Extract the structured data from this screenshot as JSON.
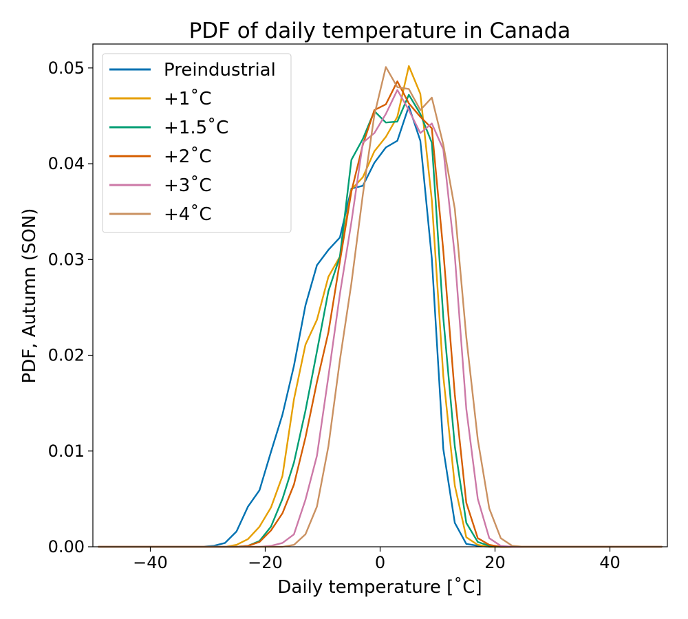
{
  "chart_data": {
    "type": "line",
    "title": "PDF of daily temperature in Canada",
    "xlabel": "Daily temperature [˚C]",
    "ylabel": "PDF, Autumn (SON)",
    "xlim": [
      -50,
      50
    ],
    "ylim": [
      0,
      0.0525
    ],
    "xticks": [
      -40,
      -20,
      0,
      20,
      40
    ],
    "xtick_labels": [
      "−40",
      "−20",
      "0",
      "20",
      "40"
    ],
    "yticks": [
      0,
      0.01,
      0.02,
      0.03,
      0.04,
      0.05
    ],
    "ytick_labels": [
      "0.00",
      "0.01",
      "0.02",
      "0.03",
      "0.04",
      "0.05"
    ],
    "grid": false,
    "legend_position": "top-left",
    "x": [
      -49,
      -47,
      -45,
      -43,
      -41,
      -39,
      -37,
      -35,
      -33,
      -31,
      -29,
      -27,
      -25,
      -23,
      -21,
      -19,
      -17,
      -15,
      -13,
      -11,
      -9,
      -7,
      -5,
      -3,
      -1,
      1,
      3,
      5,
      7,
      9,
      11,
      13,
      15,
      17,
      19,
      21,
      23,
      25,
      27,
      29,
      31,
      33,
      35,
      37,
      39,
      41,
      43,
      45,
      47,
      49
    ],
    "series": [
      {
        "name": "Preindustrial",
        "color": "#0072b2",
        "values": [
          0,
          0,
          0,
          0,
          0,
          0,
          0,
          0,
          0,
          0,
          0.0001,
          0.0004,
          0.0016,
          0.0042,
          0.0059,
          0.0099,
          0.0138,
          0.0189,
          0.0252,
          0.0294,
          0.031,
          0.0323,
          0.0374,
          0.0377,
          0.0401,
          0.0417,
          0.0424,
          0.046,
          0.0424,
          0.0301,
          0.0102,
          0.0025,
          0.0003,
          0.0001,
          0,
          0,
          0,
          0,
          0,
          0,
          0,
          0,
          0,
          0,
          0,
          0,
          0,
          0,
          0,
          0
        ]
      },
      {
        "name": "+1˚C",
        "color": "#e69f00",
        "values": [
          0,
          0,
          0,
          0,
          0,
          0,
          0,
          0,
          0,
          0,
          0,
          0,
          0.0002,
          0.0008,
          0.0021,
          0.0041,
          0.0074,
          0.0154,
          0.0211,
          0.0237,
          0.0282,
          0.0303,
          0.0373,
          0.0386,
          0.0413,
          0.0428,
          0.0449,
          0.0502,
          0.0473,
          0.0362,
          0.0178,
          0.0064,
          0.001,
          0.0002,
          0,
          0,
          0,
          0,
          0,
          0,
          0,
          0,
          0,
          0,
          0,
          0,
          0,
          0,
          0,
          0
        ]
      },
      {
        "name": "+1.5˚C",
        "color": "#009e73",
        "values": [
          0,
          0,
          0,
          0,
          0,
          0,
          0,
          0,
          0,
          0,
          0,
          0,
          0,
          0.0001,
          0.0006,
          0.0021,
          0.005,
          0.0088,
          0.0142,
          0.0204,
          0.0267,
          0.0303,
          0.0404,
          0.0426,
          0.0455,
          0.0443,
          0.0444,
          0.0472,
          0.0452,
          0.0422,
          0.0239,
          0.0105,
          0.0025,
          0.0005,
          0.0001,
          0,
          0,
          0,
          0,
          0,
          0,
          0,
          0,
          0,
          0,
          0,
          0,
          0,
          0,
          0
        ]
      },
      {
        "name": "+2˚C",
        "color": "#d55e00",
        "values": [
          0,
          0,
          0,
          0,
          0,
          0,
          0,
          0,
          0,
          0,
          0,
          0,
          0,
          0.0001,
          0.0005,
          0.0017,
          0.0035,
          0.0065,
          0.0114,
          0.0172,
          0.0224,
          0.0298,
          0.0371,
          0.042,
          0.0456,
          0.0462,
          0.0486,
          0.0463,
          0.0449,
          0.0437,
          0.0309,
          0.0159,
          0.0046,
          0.0009,
          0.0002,
          0,
          0,
          0,
          0,
          0,
          0,
          0,
          0,
          0,
          0,
          0,
          0,
          0,
          0,
          0
        ]
      },
      {
        "name": "+3˚C",
        "color": "#cc79a7",
        "values": [
          0,
          0,
          0,
          0,
          0,
          0,
          0,
          0,
          0,
          0,
          0,
          0,
          0,
          0,
          0,
          0.0001,
          0.0004,
          0.0013,
          0.0049,
          0.0095,
          0.0178,
          0.0264,
          0.0339,
          0.0422,
          0.0432,
          0.0452,
          0.0477,
          0.0456,
          0.0432,
          0.0442,
          0.0415,
          0.0304,
          0.0144,
          0.005,
          0.0009,
          0.0001,
          0,
          0,
          0,
          0,
          0,
          0,
          0,
          0,
          0,
          0,
          0,
          0,
          0,
          0
        ]
      },
      {
        "name": "+4˚C",
        "color": "#ca9161",
        "values": [
          0,
          0,
          0,
          0,
          0,
          0,
          0,
          0,
          0,
          0,
          0,
          0,
          0,
          0,
          0,
          0,
          0,
          0.0002,
          0.0013,
          0.0042,
          0.0105,
          0.0195,
          0.0275,
          0.0368,
          0.0451,
          0.0501,
          0.048,
          0.0478,
          0.0456,
          0.0469,
          0.042,
          0.0353,
          0.0219,
          0.0112,
          0.004,
          0.0009,
          0.0001,
          0,
          0,
          0,
          0,
          0,
          0,
          0,
          0,
          0,
          0,
          0,
          0,
          0
        ]
      }
    ]
  }
}
